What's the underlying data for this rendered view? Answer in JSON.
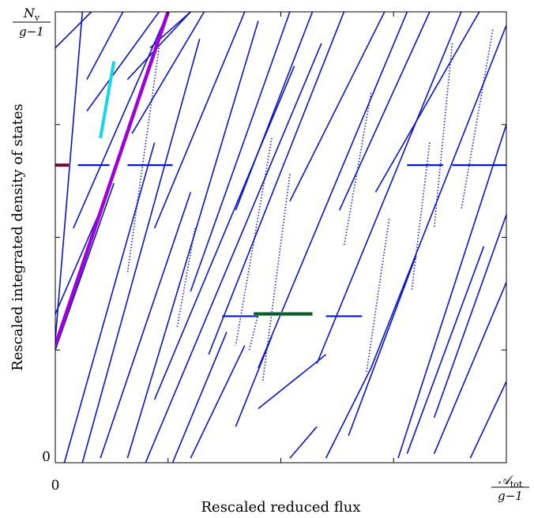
{
  "chart_data": {
    "type": "line",
    "title": "",
    "xlabel": "Rescaled reduced flux",
    "ylabel": "Rescaled integrated density of states",
    "x_tick_zero": "0",
    "y_tick_zero": "0",
    "x_end_label": {
      "num": "𝒜",
      "num_sub": "tot",
      "den": "g−1"
    },
    "y_end_label": {
      "num": "N",
      "num_sub": "v",
      "den": "g−1"
    },
    "xlim": [
      0,
      1
    ],
    "ylim": [
      0,
      1
    ],
    "grid": false,
    "colors": {
      "lines": "#0a14c8",
      "purple": "#a000d8",
      "cyan": "#10d8e8",
      "green": "#18c020",
      "dark_red": "#7a0030",
      "axis": "#000000"
    },
    "series": [
      {
        "role": "main-lattice",
        "segments": [
          [
            [
              -0.02,
              0.03
            ],
            [
              0.06,
              1
            ]
          ],
          [
            [
              0.08,
              1
            ],
            [
              0,
              0.92
            ]
          ],
          [
            [
              0.15,
              1
            ],
            [
              0.07,
              0.85
            ]
          ],
          [
            [
              0.16,
              0.85
            ],
            [
              0.3,
              1
            ]
          ],
          [
            [
              0.25,
              1
            ],
            [
              0.04,
              0.52
            ]
          ],
          [
            [
              0.1,
              0.56
            ],
            [
              0,
              0.33
            ]
          ],
          [
            [
              0,
              0.25
            ],
            [
              0.13,
              0.62
            ]
          ],
          [
            [
              0.23,
              1
            ],
            [
              0.07,
              0.78
            ]
          ],
          [
            [
              0.21,
              0.92
            ],
            [
              0.3,
              1
            ]
          ],
          [
            [
              0.33,
              1
            ],
            [
              0.17,
              0.73
            ]
          ],
          [
            [
              0.42,
              1
            ],
            [
              0.22,
              0.52
            ]
          ],
          [
            [
              0.52,
              1
            ],
            [
              0.3,
              0.38
            ]
          ],
          [
            [
              0.57,
              1
            ],
            [
              0.4,
              0.56
            ]
          ],
          [
            [
              0.64,
              1
            ],
            [
              0.34,
              0.24
            ]
          ],
          [
            [
              0.73,
              1
            ],
            [
              0.52,
              0.58
            ]
          ],
          [
            [
              0.78,
              1
            ],
            [
              0.45,
              0.21
            ]
          ],
          [
            [
              0.83,
              1
            ],
            [
              0.63,
              0.56
            ]
          ],
          [
            [
              0.9,
              1
            ],
            [
              0.58,
              0.22
            ]
          ],
          [
            [
              0.94,
              1
            ],
            [
              0.71,
              0.6
            ]
          ],
          [
            [
              1,
              0.97
            ],
            [
              0.7,
              0.21
            ]
          ],
          [
            [
              1,
              0.75
            ],
            [
              0.76,
              0.01
            ]
          ],
          [
            [
              1,
              0.55
            ],
            [
              0.84,
              0.1
            ]
          ],
          [
            [
              0.02,
              0
            ],
            [
              0.22,
              0.71
            ]
          ],
          [
            [
              0.06,
              0
            ],
            [
              0.32,
              0.94
            ]
          ],
          [
            [
              0.1,
              0.01
            ],
            [
              0.3,
              0.6
            ]
          ],
          [
            [
              0.16,
              0.01
            ],
            [
              0.45,
              0.98
            ]
          ],
          [
            [
              0.2,
              0
            ],
            [
              0.59,
              0.93
            ]
          ],
          [
            [
              0.22,
              0.14
            ],
            [
              0.53,
              0.88
            ]
          ],
          [
            [
              0.26,
              0
            ],
            [
              0.38,
              0.29
            ]
          ],
          [
            [
              0.3,
              0.01
            ],
            [
              0.42,
              0.26
            ]
          ],
          [
            [
              0.4,
              0.08
            ],
            [
              0.48,
              0.28
            ]
          ],
          [
            [
              0.45,
              0.12
            ],
            [
              0.6,
              0.24
            ]
          ],
          [
            [
              0.52,
              0.01
            ],
            [
              0.58,
              0.08
            ]
          ],
          [
            [
              0.6,
              0.01
            ],
            [
              0.7,
              0.21
            ]
          ],
          [
            [
              0.65,
              0.06
            ],
            [
              0.8,
              0.46
            ]
          ],
          [
            [
              0.78,
              0.02
            ],
            [
              0.95,
              0.48
            ]
          ],
          [
            [
              0.84,
              0.02
            ],
            [
              1,
              0.4
            ]
          ],
          [
            [
              0.92,
              0.01
            ],
            [
              1,
              0.18
            ]
          ]
        ]
      },
      {
        "role": "horizontal-steps",
        "segments": [
          [
            [
              0.05,
              0.66
            ],
            [
              0.12,
              0.66
            ]
          ],
          [
            [
              0.16,
              0.66
            ],
            [
              0.26,
              0.66
            ]
          ],
          [
            [
              0.78,
              0.66
            ],
            [
              0.86,
              0.66
            ]
          ],
          [
            [
              0.88,
              0.66
            ],
            [
              1,
              0.66
            ]
          ],
          [
            [
              0.37,
              0.325
            ],
            [
              0.45,
              0.325
            ]
          ],
          [
            [
              0.6,
              0.325
            ],
            [
              0.68,
              0.325
            ]
          ]
        ]
      },
      {
        "role": "dotted-segments",
        "segments": [
          [
            [
              0.23,
              0.92
            ],
            [
              0.16,
              0.42
            ]
          ],
          [
            [
              0.31,
              0.52
            ],
            [
              0.27,
              0.3
            ]
          ],
          [
            [
              0.48,
              0.72
            ],
            [
              0.4,
              0.26
            ]
          ],
          [
            [
              0.52,
              0.64
            ],
            [
              0.46,
              0.18
            ]
          ],
          [
            [
              0.7,
              0.82
            ],
            [
              0.64,
              0.48
            ]
          ],
          [
            [
              0.74,
              0.54
            ],
            [
              0.69,
              0.2
            ]
          ],
          [
            [
              0.83,
              0.71
            ],
            [
              0.79,
              0.38
            ]
          ],
          [
            [
              0.88,
              0.93
            ],
            [
              0.84,
              0.52
            ]
          ],
          [
            [
              0.97,
              0.96
            ],
            [
              0.9,
              0.56
            ]
          ],
          [
            [
              0.45,
              0.33
            ],
            [
              0.43,
              0.25
            ]
          ]
        ]
      },
      {
        "role": "highlight-purple",
        "points": [
          [
            0,
            0.26
          ],
          [
            0.25,
            1
          ]
        ]
      },
      {
        "role": "highlight-cyan",
        "points": [
          [
            0.1,
            0.72
          ],
          [
            0.13,
            0.89
          ]
        ]
      },
      {
        "role": "highlight-green",
        "points": [
          [
            0.44,
            0.33
          ],
          [
            0.57,
            0.33
          ]
        ]
      },
      {
        "role": "highlight-dark-red",
        "points": [
          [
            0,
            0.66
          ],
          [
            0.03,
            0.66
          ]
        ]
      }
    ]
  }
}
